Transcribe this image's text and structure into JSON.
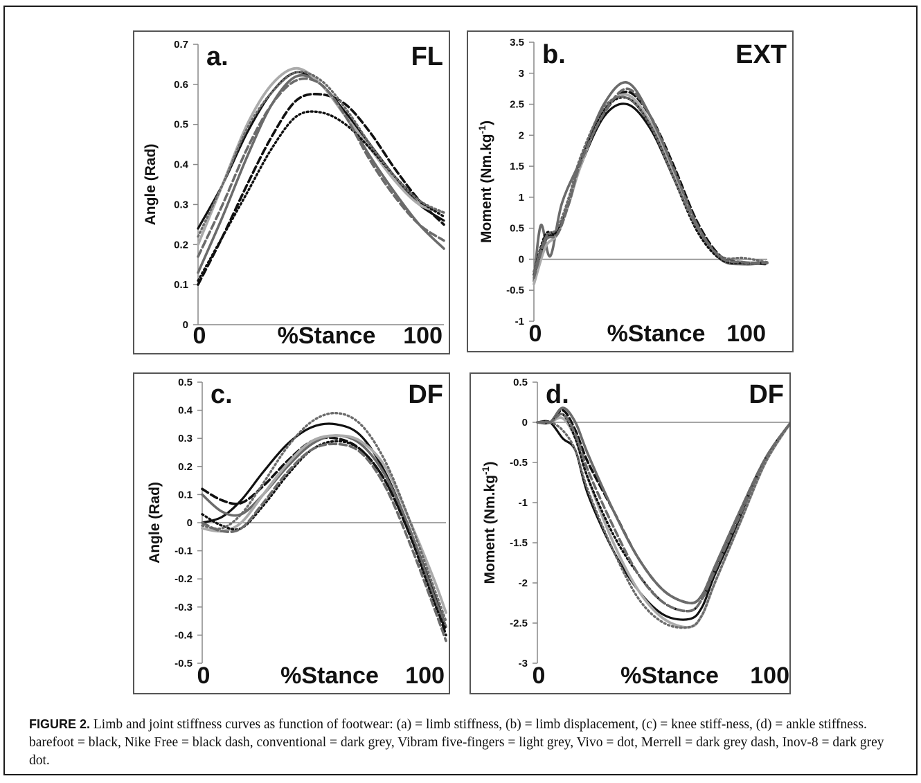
{
  "caption": {
    "label": "FIGURE 2.",
    "text": " Limb and joint stiffness curves as function of footwear: (a) = limb stiffness, (b) = limb displacement, (c) = knee stiff-ness, (d) = ankle stiffness. barefoot = black, Nike Free = black dash, conventional = dark grey, Vibram five-fingers = light grey, Vivo = dot, Merrell = dark grey dash, Inov-8 = dark grey dot."
  },
  "colors": {
    "black": "#111111",
    "dark_grey": "#6b6b6b",
    "light_grey": "#ababab"
  },
  "chart_data": [
    {
      "type": "line",
      "panel_letter": "a.",
      "panel_tag": "FL",
      "ylabel": "Angle (Rad)",
      "xlabel": "%Stance",
      "x_tick_labels": [
        "0",
        "100"
      ],
      "xlim": [
        0,
        100
      ],
      "ylim": [
        0,
        0.7
      ],
      "yticks": [
        "0",
        "0.1",
        "0.2",
        "0.3",
        "0.4",
        "0.5",
        "0.6",
        "0.7"
      ],
      "series": [
        {
          "style": "black-solid",
          "x": [
            0,
            10,
            20,
            30,
            40,
            50,
            60,
            70,
            80,
            90,
            100
          ],
          "y": [
            0.24,
            0.35,
            0.48,
            0.58,
            0.63,
            0.6,
            0.53,
            0.45,
            0.37,
            0.3,
            0.26
          ]
        },
        {
          "style": "black-dash",
          "x": [
            0,
            10,
            20,
            30,
            40,
            50,
            60,
            70,
            80,
            90,
            100
          ],
          "y": [
            0.1,
            0.22,
            0.35,
            0.47,
            0.56,
            0.575,
            0.55,
            0.48,
            0.39,
            0.31,
            0.25
          ]
        },
        {
          "style": "dark-grey-solid",
          "x": [
            0,
            10,
            20,
            30,
            40,
            50,
            60,
            70,
            80,
            90,
            100
          ],
          "y": [
            0.13,
            0.27,
            0.42,
            0.55,
            0.62,
            0.6,
            0.52,
            0.42,
            0.33,
            0.25,
            0.19
          ]
        },
        {
          "style": "light-grey-solid",
          "x": [
            0,
            10,
            20,
            30,
            40,
            50,
            60,
            70,
            80,
            90,
            100
          ],
          "y": [
            0.2,
            0.35,
            0.5,
            0.6,
            0.64,
            0.6,
            0.52,
            0.44,
            0.36,
            0.3,
            0.28
          ]
        },
        {
          "style": "black-dot",
          "x": [
            0,
            10,
            20,
            30,
            40,
            50,
            60,
            70,
            80,
            90,
            100
          ],
          "y": [
            0.11,
            0.22,
            0.33,
            0.44,
            0.52,
            0.53,
            0.5,
            0.44,
            0.37,
            0.31,
            0.27
          ]
        },
        {
          "style": "dark-grey-dash",
          "x": [
            0,
            10,
            20,
            30,
            40,
            50,
            60,
            70,
            80,
            90,
            100
          ],
          "y": [
            0.17,
            0.3,
            0.44,
            0.55,
            0.61,
            0.6,
            0.52,
            0.41,
            0.32,
            0.25,
            0.21
          ]
        },
        {
          "style": "dark-grey-dot",
          "x": [
            0,
            10,
            20,
            30,
            40,
            50,
            60,
            70,
            80,
            90,
            100
          ],
          "y": [
            0.22,
            0.35,
            0.49,
            0.58,
            0.63,
            0.61,
            0.54,
            0.45,
            0.37,
            0.31,
            0.28
          ]
        }
      ]
    },
    {
      "type": "line",
      "panel_letter": "b.",
      "panel_tag": "EXT",
      "ylabel": "Moment (Nm.kg-1)",
      "xlabel": "%Stance",
      "x_tick_labels": [
        "0",
        "100"
      ],
      "xlim": [
        0,
        100
      ],
      "ylim": [
        -1,
        3.5
      ],
      "yticks": [
        "-1",
        "-0.5",
        "0",
        "0.5",
        "1",
        "1.5",
        "2",
        "2.5",
        "3",
        "3.5"
      ],
      "series": [
        {
          "style": "black-solid",
          "x": [
            0,
            5,
            10,
            15,
            20,
            30,
            40,
            50,
            60,
            70,
            80,
            90,
            100
          ],
          "y": [
            -0.3,
            0.3,
            0.45,
            0.9,
            1.5,
            2.3,
            2.5,
            2.1,
            1.3,
            0.5,
            0.0,
            -0.08,
            -0.05
          ]
        },
        {
          "style": "black-dash",
          "x": [
            0,
            5,
            10,
            15,
            20,
            30,
            40,
            50,
            60,
            70,
            80,
            90,
            100
          ],
          "y": [
            -0.25,
            0.35,
            0.4,
            0.9,
            1.5,
            2.35,
            2.7,
            2.3,
            1.5,
            0.6,
            0.05,
            -0.05,
            -0.08
          ]
        },
        {
          "style": "dark-grey-solid",
          "x": [
            0,
            3,
            7,
            12,
            20,
            30,
            40,
            50,
            60,
            70,
            80,
            90,
            100
          ],
          "y": [
            -0.35,
            0.55,
            0.05,
            0.9,
            1.6,
            2.5,
            2.85,
            2.3,
            1.4,
            0.55,
            0.0,
            -0.08,
            -0.06
          ]
        },
        {
          "style": "light-grey-solid",
          "x": [
            0,
            5,
            10,
            15,
            20,
            30,
            40,
            50,
            60,
            70,
            80,
            90,
            100
          ],
          "y": [
            -0.4,
            0.2,
            0.4,
            0.9,
            1.5,
            2.4,
            2.65,
            2.2,
            1.35,
            0.5,
            0.02,
            -0.05,
            -0.05
          ]
        },
        {
          "style": "black-dot",
          "x": [
            0,
            5,
            10,
            15,
            20,
            30,
            40,
            50,
            60,
            70,
            80,
            90,
            100
          ],
          "y": [
            -0.2,
            0.4,
            0.45,
            1.0,
            1.6,
            2.4,
            2.6,
            2.15,
            1.3,
            0.45,
            0.0,
            -0.06,
            -0.06
          ]
        },
        {
          "style": "dark-grey-dash",
          "x": [
            0,
            5,
            10,
            15,
            20,
            30,
            40,
            50,
            60,
            70,
            80,
            90,
            100
          ],
          "y": [
            -0.3,
            0.3,
            0.4,
            0.9,
            1.55,
            2.35,
            2.75,
            2.3,
            1.45,
            0.55,
            0.03,
            -0.05,
            -0.06
          ]
        },
        {
          "style": "dark-grey-dot",
          "x": [
            0,
            5,
            10,
            15,
            20,
            30,
            40,
            50,
            60,
            70,
            80,
            90,
            100
          ],
          "y": [
            -0.2,
            0.35,
            0.5,
            1.0,
            1.65,
            2.45,
            2.6,
            2.15,
            1.3,
            0.5,
            0.05,
            0.02,
            -0.05
          ]
        }
      ]
    },
    {
      "type": "line",
      "panel_letter": "c.",
      "panel_tag": "DF",
      "ylabel": "Angle (Rad)",
      "xlabel": "%Stance",
      "x_tick_labels": [
        "0",
        "100"
      ],
      "xlim": [
        0,
        100
      ],
      "ylim": [
        -0.5,
        0.5
      ],
      "yticks": [
        "-0.5",
        "-0.4",
        "-0.3",
        "-0.2",
        "-0.1",
        "0",
        "0.1",
        "0.2",
        "0.3",
        "0.4",
        "0.5"
      ],
      "series": [
        {
          "style": "black-solid",
          "x": [
            0,
            8,
            16,
            25,
            35,
            45,
            55,
            65,
            75,
            85,
            95,
            100
          ],
          "y": [
            0.0,
            0.02,
            0.08,
            0.18,
            0.28,
            0.34,
            0.35,
            0.31,
            0.18,
            -0.02,
            -0.25,
            -0.37
          ]
        },
        {
          "style": "black-dash",
          "x": [
            0,
            8,
            16,
            25,
            35,
            45,
            55,
            65,
            75,
            85,
            95,
            100
          ],
          "y": [
            0.12,
            0.08,
            0.07,
            0.13,
            0.22,
            0.29,
            0.3,
            0.26,
            0.15,
            -0.04,
            -0.27,
            -0.4
          ]
        },
        {
          "style": "dark-grey-solid",
          "x": [
            0,
            8,
            16,
            25,
            35,
            45,
            55,
            65,
            75,
            85,
            95,
            100
          ],
          "y": [
            0.1,
            0.04,
            0.03,
            0.1,
            0.2,
            0.28,
            0.31,
            0.28,
            0.17,
            -0.02,
            -0.26,
            -0.37
          ]
        },
        {
          "style": "light-grey-solid",
          "x": [
            0,
            8,
            16,
            25,
            35,
            45,
            55,
            65,
            75,
            85,
            95,
            100
          ],
          "y": [
            -0.02,
            -0.03,
            0.0,
            0.1,
            0.21,
            0.29,
            0.31,
            0.29,
            0.2,
            0.01,
            -0.2,
            -0.32
          ]
        },
        {
          "style": "black-dot",
          "x": [
            0,
            8,
            16,
            25,
            35,
            45,
            55,
            65,
            75,
            85,
            95,
            100
          ],
          "y": [
            0.03,
            -0.01,
            -0.02,
            0.06,
            0.17,
            0.26,
            0.29,
            0.26,
            0.15,
            -0.04,
            -0.28,
            -0.38
          ]
        },
        {
          "style": "dark-grey-dash",
          "x": [
            0,
            8,
            16,
            25,
            35,
            45,
            55,
            65,
            75,
            85,
            95,
            100
          ],
          "y": [
            0.0,
            -0.03,
            -0.02,
            0.07,
            0.18,
            0.26,
            0.28,
            0.25,
            0.13,
            -0.07,
            -0.3,
            -0.42
          ]
        },
        {
          "style": "dark-grey-dot",
          "x": [
            0,
            8,
            16,
            25,
            35,
            45,
            55,
            65,
            75,
            85,
            95,
            100
          ],
          "y": [
            -0.01,
            -0.02,
            0.03,
            0.14,
            0.27,
            0.36,
            0.39,
            0.35,
            0.22,
            0.01,
            -0.23,
            -0.35
          ]
        }
      ]
    },
    {
      "type": "line",
      "panel_letter": "d.",
      "panel_tag": "DF",
      "ylabel": "Moment (Nm.kg-1)",
      "xlabel": "%Stance",
      "x_tick_labels": [
        "0",
        "100"
      ],
      "xlim": [
        0,
        100
      ],
      "ylim": [
        -3,
        0.5
      ],
      "yticks": [
        "-3",
        "-2.5",
        "-2",
        "-1.5",
        "-1",
        "-0.5",
        "0",
        "0.5"
      ],
      "series": [
        {
          "style": "black-solid",
          "x": [
            0,
            5,
            10,
            15,
            20,
            30,
            40,
            50,
            60,
            65,
            70,
            80,
            90,
            100
          ],
          "y": [
            0.0,
            0.0,
            -0.2,
            -0.35,
            -0.9,
            -1.6,
            -2.1,
            -2.4,
            -2.45,
            -2.3,
            -1.9,
            -1.2,
            -0.5,
            0.0
          ]
        },
        {
          "style": "black-dash",
          "x": [
            0,
            5,
            10,
            15,
            20,
            30,
            40,
            50,
            60,
            65,
            70,
            80,
            90,
            100
          ],
          "y": [
            0.0,
            0.0,
            0.15,
            -0.1,
            -0.5,
            -1.1,
            -1.7,
            -2.1,
            -2.25,
            -2.15,
            -1.8,
            -1.1,
            -0.45,
            0.0
          ]
        },
        {
          "style": "dark-grey-solid",
          "x": [
            0,
            5,
            10,
            15,
            20,
            30,
            40,
            50,
            60,
            65,
            70,
            80,
            90,
            100
          ],
          "y": [
            0.0,
            0.0,
            0.18,
            0.0,
            -0.4,
            -1.1,
            -1.7,
            -2.1,
            -2.25,
            -2.15,
            -1.8,
            -1.1,
            -0.45,
            0.0
          ]
        },
        {
          "style": "light-grey-solid",
          "x": [
            0,
            5,
            10,
            15,
            20,
            30,
            40,
            50,
            60,
            65,
            70,
            80,
            90,
            100
          ],
          "y": [
            0.0,
            0.0,
            0.05,
            -0.2,
            -0.7,
            -1.5,
            -2.1,
            -2.45,
            -2.55,
            -2.4,
            -2.0,
            -1.25,
            -0.5,
            0.0
          ]
        },
        {
          "style": "black-dot",
          "x": [
            0,
            5,
            10,
            15,
            20,
            30,
            40,
            50,
            60,
            65,
            70,
            80,
            90,
            100
          ],
          "y": [
            0.0,
            0.0,
            0.1,
            -0.2,
            -0.7,
            -1.4,
            -1.9,
            -2.25,
            -2.35,
            -2.2,
            -1.85,
            -1.15,
            -0.45,
            0.0
          ]
        },
        {
          "style": "dark-grey-dash",
          "x": [
            0,
            5,
            10,
            15,
            20,
            30,
            40,
            50,
            60,
            65,
            70,
            80,
            90,
            100
          ],
          "y": [
            0.0,
            0.0,
            0.1,
            -0.15,
            -0.6,
            -1.3,
            -1.9,
            -2.25,
            -2.35,
            -2.2,
            -1.85,
            -1.15,
            -0.45,
            0.0
          ]
        },
        {
          "style": "dark-grey-dot",
          "x": [
            0,
            5,
            10,
            15,
            20,
            30,
            40,
            50,
            60,
            65,
            70,
            80,
            90,
            100
          ],
          "y": [
            0.0,
            0.0,
            -0.1,
            -0.35,
            -0.85,
            -1.6,
            -2.2,
            -2.5,
            -2.55,
            -2.4,
            -2.0,
            -1.25,
            -0.5,
            0.0
          ]
        }
      ]
    }
  ]
}
